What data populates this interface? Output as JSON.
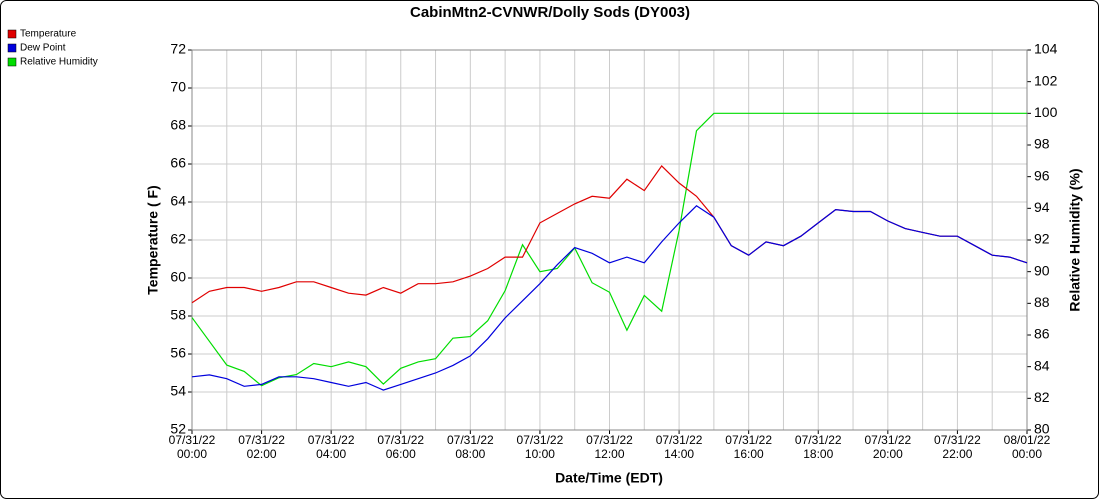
{
  "chart_data": {
    "type": "line",
    "title": "CabinMtn2-CVNWR/Dolly Sods (DY003)",
    "x_label": "Date/Time (EDT)",
    "y_label": "Temperature ( F)",
    "y2_label": "Relative Humidity (%)",
    "x": [
      0,
      0.5,
      1,
      1.5,
      2,
      2.5,
      3,
      3.5,
      4,
      4.5,
      5,
      5.5,
      6,
      6.5,
      7,
      7.5,
      8,
      8.5,
      9,
      9.5,
      10,
      10.5,
      11,
      11.5,
      12,
      12.5,
      13,
      13.5,
      14,
      14.5,
      15,
      15.5,
      16,
      16.5,
      17,
      17.5,
      18,
      18.5,
      19,
      19.5,
      20,
      20.5,
      21,
      21.5,
      22,
      22.5,
      23,
      23.5,
      24
    ],
    "xlim": [
      0,
      24
    ],
    "xticks": [
      {
        "value": 0,
        "label": "07/31/22\n00:00"
      },
      {
        "value": 2,
        "label": "07/31/22\n02:00"
      },
      {
        "value": 4,
        "label": "07/31/22\n04:00"
      },
      {
        "value": 6,
        "label": "07/31/22\n06:00"
      },
      {
        "value": 8,
        "label": "07/31/22\n08:00"
      },
      {
        "value": 10,
        "label": "07/31/22\n10:00"
      },
      {
        "value": 12,
        "label": "07/31/22\n12:00"
      },
      {
        "value": 14,
        "label": "07/31/22\n14:00"
      },
      {
        "value": 16,
        "label": "07/31/22\n16:00"
      },
      {
        "value": 18,
        "label": "07/31/22\n18:00"
      },
      {
        "value": 20,
        "label": "07/31/22\n20:00"
      },
      {
        "value": 22,
        "label": "07/31/22\n22:00"
      },
      {
        "value": 24,
        "label": "08/01/22\n00:00"
      }
    ],
    "x_minor_ticks": [
      1,
      3,
      5,
      7,
      9,
      11,
      13,
      15,
      17,
      19,
      21,
      23
    ],
    "ylim": [
      52,
      72
    ],
    "yticks": [
      52,
      54,
      56,
      58,
      60,
      62,
      64,
      66,
      68,
      70,
      72
    ],
    "y2lim": [
      80,
      104
    ],
    "y2ticks": [
      80,
      82,
      84,
      86,
      88,
      90,
      92,
      94,
      96,
      98,
      100,
      102,
      104
    ],
    "grid": true,
    "legend": "top-left",
    "series": [
      {
        "name": "Temperature",
        "color": "#e00000",
        "values": [
          58.7,
          59.3,
          59.5,
          59.5,
          59.3,
          59.5,
          59.8,
          59.8,
          59.5,
          59.2,
          59.1,
          59.5,
          59.2,
          59.7,
          59.7,
          59.8,
          60.1,
          60.5,
          61.1,
          61.1,
          62.9,
          63.4,
          63.9,
          64.3,
          64.2,
          65.2,
          64.6,
          65.9,
          65.0,
          64.3,
          63.2,
          61.7,
          61.2,
          61.9,
          61.7,
          62.2,
          62.9,
          63.6,
          63.5,
          63.5,
          63.0,
          62.6,
          62.4,
          62.2,
          62.2,
          61.7,
          61.2,
          61.1,
          60.8
        ]
      },
      {
        "name": "Dew Point",
        "color": "#0000dd",
        "values": [
          54.8,
          54.9,
          54.7,
          54.3,
          54.4,
          54.8,
          54.8,
          54.7,
          54.5,
          54.3,
          54.5,
          54.1,
          54.4,
          54.7,
          55.0,
          55.4,
          55.9,
          56.8,
          57.9,
          58.8,
          59.7,
          60.7,
          61.6,
          61.3,
          60.8,
          61.1,
          60.8,
          61.9,
          62.9,
          63.8,
          63.2,
          61.7,
          61.2,
          61.9,
          61.7,
          62.2,
          62.9,
          63.6,
          63.5,
          63.5,
          63.0,
          62.6,
          62.4,
          62.2,
          62.2,
          61.7,
          61.2,
          61.1,
          60.8
        ]
      },
      {
        "name": "Relative Humidity",
        "color": "#00dd00",
        "axis": "y2",
        "values": [
          87.1,
          85.6,
          84.1,
          83.7,
          82.8,
          83.3,
          83.5,
          84.2,
          84.0,
          84.3,
          84.0,
          82.9,
          83.9,
          84.3,
          84.5,
          85.8,
          85.9,
          86.9,
          88.8,
          91.7,
          90.0,
          90.2,
          91.5,
          89.3,
          88.7,
          86.3,
          88.5,
          87.5,
          92.6,
          98.9,
          100,
          100,
          100,
          100,
          100,
          100,
          100,
          100,
          100,
          100,
          100,
          100,
          100,
          100,
          100,
          100,
          100,
          100,
          100
        ]
      }
    ]
  }
}
